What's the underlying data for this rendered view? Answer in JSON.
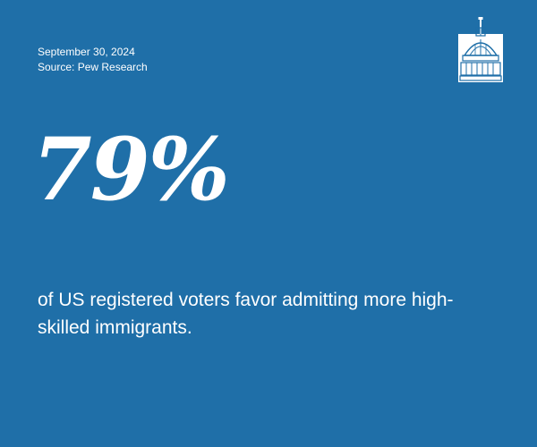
{
  "card": {
    "date": "September 30, 2024",
    "source": "Source: Pew Research",
    "statistic": "79%",
    "statement": "of US registered voters favor admitting more high-skilled immigrants.",
    "background_color": "#1f6fa8",
    "text_color": "#ffffff"
  },
  "logo": {
    "icon": "capitol-dome-icon"
  }
}
